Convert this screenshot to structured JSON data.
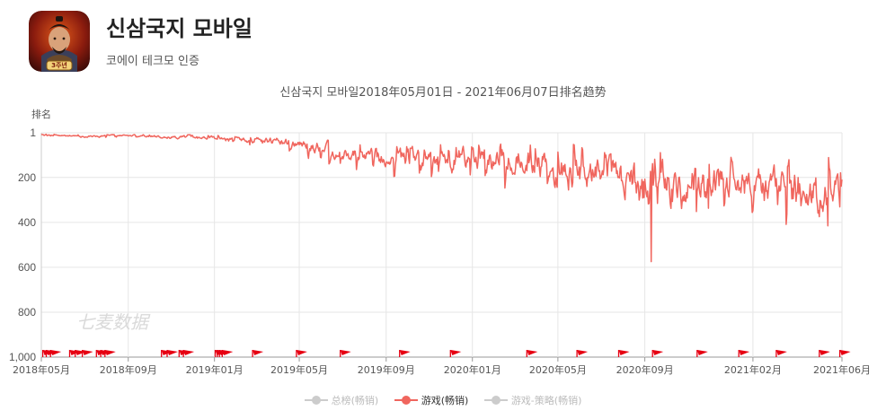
{
  "app": {
    "name": "신삼국지 모바일",
    "developer": "코에이 테크모 인증",
    "icon_badge": "3주년"
  },
  "chart_title": "신삼국지 모바일2018年05月01日 - 2021年06月07日排名趋势",
  "watermark": "七麦数据",
  "colors": {
    "series": "#f0665e",
    "grid": "#e6e6e6",
    "flag": "#e60012",
    "legend_inactive": "#cccccc"
  },
  "legend": [
    {
      "label": "总榜(畅销)",
      "active": false
    },
    {
      "label": "游戏(畅销)",
      "active": true
    },
    {
      "label": "游戏-策略(畅销)",
      "active": false
    }
  ],
  "chart_data": {
    "type": "line",
    "title": "신삼국지 모바일2018年05月01日 - 2021年06月07日排名趋势",
    "ylabel": "排名",
    "y_inverted": true,
    "ylim": [
      1,
      1000
    ],
    "y_ticks": [
      "1",
      "200",
      "400",
      "600",
      "800",
      "1,000"
    ],
    "x_ticks": [
      "2018年05月",
      "2018年09月",
      "2019年01月",
      "2019年05月",
      "2019年09月",
      "2020年01月",
      "2020年05月",
      "2020年09月",
      "2021年02月",
      "2021年06月"
    ],
    "grid": true,
    "legend_position": "bottom",
    "series": [
      {
        "name": "游戏(畅销)",
        "x": [
          "2018-05-01",
          "2018-06-01",
          "2018-07-01",
          "2018-08-01",
          "2018-09-01",
          "2018-10-01",
          "2018-11-01",
          "2018-12-01",
          "2019-01-01",
          "2019-02-01",
          "2019-03-01",
          "2019-04-01",
          "2019-05-01",
          "2019-06-01",
          "2019-07-01",
          "2019-08-01",
          "2019-09-01",
          "2019-10-01",
          "2019-11-01",
          "2019-12-01",
          "2020-01-01",
          "2020-02-01",
          "2020-03-01",
          "2020-04-01",
          "2020-05-01",
          "2020-06-01",
          "2020-07-01",
          "2020-08-01",
          "2020-09-01",
          "2020-10-01",
          "2020-11-01",
          "2020-12-01",
          "2021-01-01",
          "2021-02-01",
          "2021-03-01",
          "2021-04-01",
          "2021-05-01",
          "2021-06-07"
        ],
        "values": [
          8,
          15,
          18,
          14,
          12,
          18,
          20,
          22,
          25,
          28,
          40,
          45,
          50,
          70,
          85,
          95,
          115,
          120,
          110,
          125,
          105,
          130,
          120,
          140,
          165,
          185,
          180,
          220,
          240,
          260,
          245,
          240,
          235,
          250,
          270,
          255,
          275,
          240
        ],
        "band_min": [
          5,
          8,
          8,
          8,
          6,
          10,
          8,
          10,
          12,
          15,
          20,
          22,
          25,
          30,
          35,
          40,
          50,
          40,
          50,
          45,
          30,
          50,
          40,
          50,
          30,
          60,
          50,
          90,
          40,
          90,
          70,
          60,
          100,
          80,
          90,
          100,
          100,
          110
        ],
        "band_max": [
          12,
          20,
          25,
          22,
          18,
          28,
          32,
          40,
          38,
          42,
          80,
          90,
          100,
          140,
          160,
          170,
          200,
          190,
          210,
          230,
          200,
          240,
          260,
          280,
          300,
          310,
          320,
          380,
          575,
          420,
          440,
          400,
          380,
          410,
          470,
          490,
          450,
          390
        ]
      }
    ],
    "events_x": [
      "2018-05-03",
      "2018-05-08",
      "2018-05-14",
      "2018-06-10",
      "2018-06-18",
      "2018-06-28",
      "2018-07-18",
      "2018-07-24",
      "2018-07-30",
      "2018-10-18",
      "2018-10-26",
      "2018-11-12",
      "2018-11-18",
      "2019-01-02",
      "2019-01-05",
      "2019-01-08",
      "2019-01-12",
      "2019-02-24",
      "2019-04-27",
      "2019-06-28",
      "2019-09-20",
      "2019-12-01",
      "2020-03-18",
      "2020-05-28",
      "2020-07-26",
      "2020-09-12",
      "2020-11-14",
      "2021-01-12",
      "2021-03-06",
      "2021-05-06",
      "2021-06-04"
    ]
  }
}
